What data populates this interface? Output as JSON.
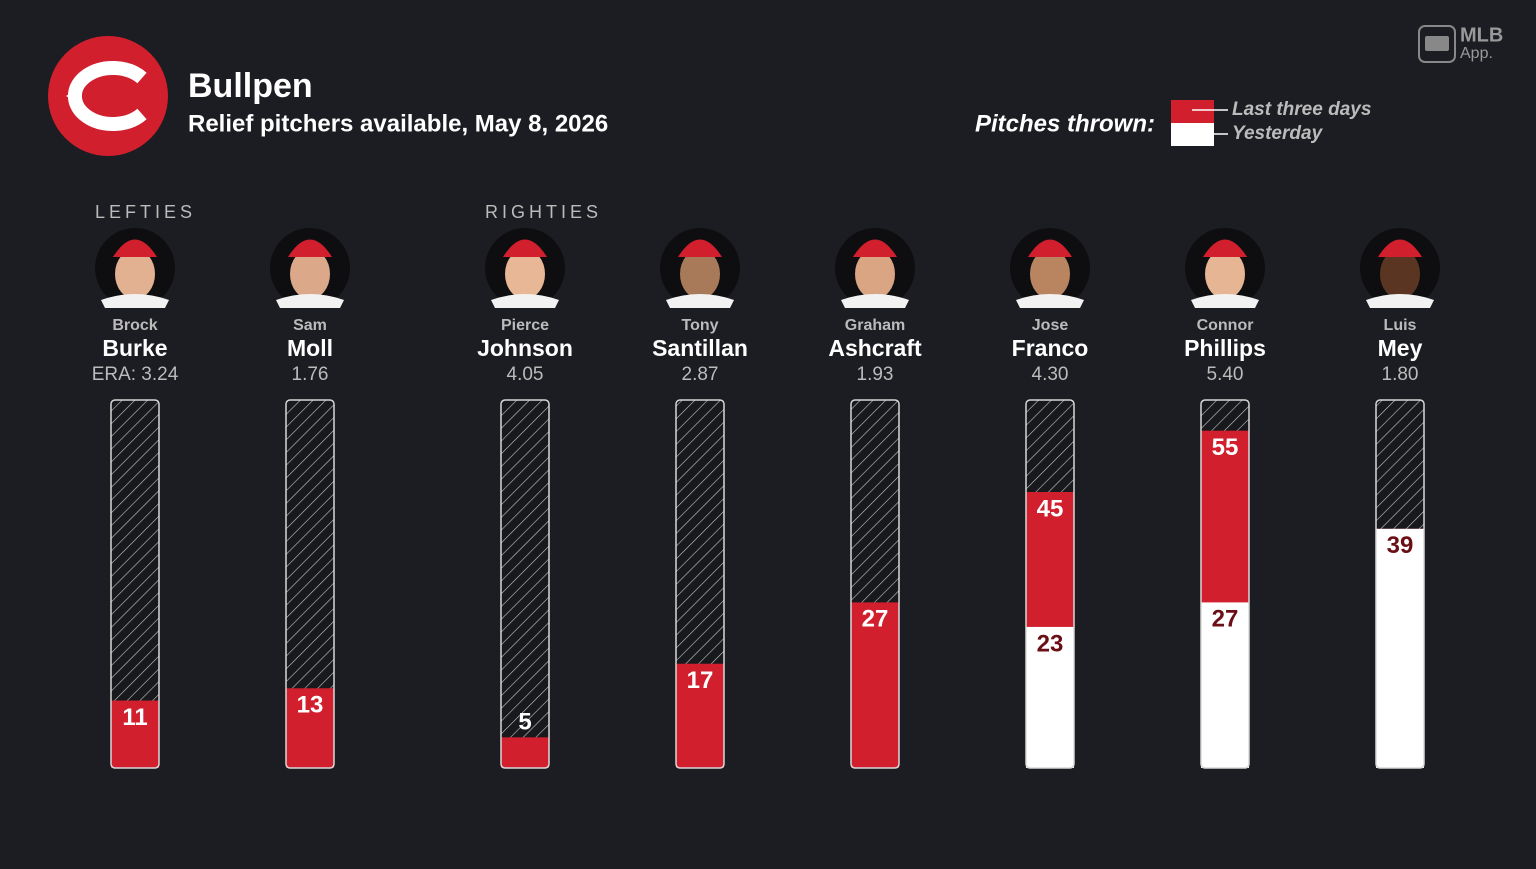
{
  "chart_data": {
    "type": "bar",
    "title": "Bullpen",
    "subtitle": "Relief pitchers available, May 8, 2026",
    "brand": "MLB",
    "brand_sub": "App.",
    "legend_title": "Pitches thrown:",
    "groups": [
      {
        "label": "LEFTIES",
        "start": 0
      },
      {
        "label": "RIGHTIES",
        "start": 2
      }
    ],
    "first_names": [
      "Brock",
      "Sam",
      "Pierce",
      "Tony",
      "Graham",
      "Jose",
      "Connor",
      "Luis"
    ],
    "categories": [
      "Burke",
      "Moll",
      "Johnson",
      "Santillan",
      "Ashcraft",
      "Franco",
      "Phillips",
      "Mey"
    ],
    "era_labels": [
      "ERA: 3.24",
      "1.76",
      "4.05",
      "2.87",
      "1.93",
      "4.30",
      "5.40",
      "1.80"
    ],
    "ylim": [
      0,
      60
    ],
    "series": [
      {
        "name": "Last three days",
        "color": "#d11f2e",
        "values": [
          11,
          13,
          5,
          17,
          27,
          45,
          55,
          39
        ]
      },
      {
        "name": "Yesterday",
        "color": "#ffffff",
        "values": [
          null,
          null,
          null,
          null,
          null,
          23,
          27,
          39
        ]
      }
    ]
  }
}
